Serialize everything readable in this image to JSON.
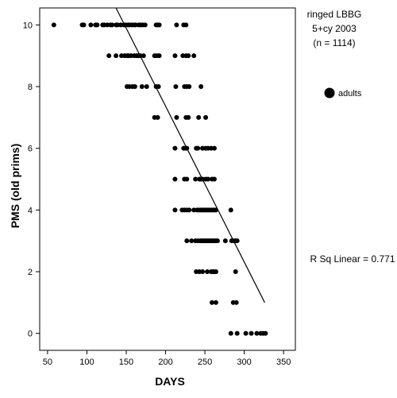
{
  "chart_data": {
    "type": "scatter",
    "title_lines": [
      "ringed LBBG",
      "5+cy 2003",
      "(n = 1114)"
    ],
    "xlabel": "DAYS",
    "ylabel": "PMS (old prims)",
    "xlim": [
      40,
      365
    ],
    "ylim": [
      -0.55,
      10.55
    ],
    "x_ticks": [
      50,
      100,
      150,
      200,
      250,
      300,
      350
    ],
    "y_ticks": [
      0,
      2,
      4,
      6,
      8,
      10
    ],
    "grid": false,
    "legend": {
      "position": "right",
      "entries": [
        {
          "label": "adults",
          "marker": "filled-circle"
        }
      ]
    },
    "annotation": "R Sq Linear = 0.771",
    "fit_line": {
      "type": "linear",
      "points": [
        [
          137,
          10.55
        ],
        [
          326,
          1.0
        ]
      ]
    },
    "series": [
      {
        "name": "adults",
        "color": "#000000",
        "points": [
          [
            58,
            10
          ],
          [
            94,
            10
          ],
          [
            96,
            10
          ],
          [
            105,
            10
          ],
          [
            111,
            10
          ],
          [
            113,
            10
          ],
          [
            120,
            10
          ],
          [
            122,
            10
          ],
          [
            126,
            10
          ],
          [
            130,
            10
          ],
          [
            132,
            10
          ],
          [
            137,
            10
          ],
          [
            139,
            10
          ],
          [
            143,
            10
          ],
          [
            147,
            10
          ],
          [
            149,
            10
          ],
          [
            152,
            10
          ],
          [
            154,
            10
          ],
          [
            157,
            10
          ],
          [
            160,
            10
          ],
          [
            162,
            10
          ],
          [
            166,
            10
          ],
          [
            168,
            10
          ],
          [
            171,
            10
          ],
          [
            174,
            10
          ],
          [
            188,
            10
          ],
          [
            190,
            10
          ],
          [
            192,
            10
          ],
          [
            214,
            10
          ],
          [
            223,
            10
          ],
          [
            226,
            10
          ],
          [
            128,
            9
          ],
          [
            137,
            9
          ],
          [
            144,
            9
          ],
          [
            148,
            9
          ],
          [
            151,
            9
          ],
          [
            153,
            9
          ],
          [
            156,
            9
          ],
          [
            160,
            9
          ],
          [
            163,
            9
          ],
          [
            165,
            9
          ],
          [
            168,
            9
          ],
          [
            172,
            9
          ],
          [
            186,
            9
          ],
          [
            189,
            9
          ],
          [
            192,
            9
          ],
          [
            212,
            9
          ],
          [
            222,
            9
          ],
          [
            226,
            9
          ],
          [
            229,
            9
          ],
          [
            236,
            9
          ],
          [
            151,
            8
          ],
          [
            154,
            8
          ],
          [
            158,
            8
          ],
          [
            161,
            8
          ],
          [
            170,
            8
          ],
          [
            176,
            8
          ],
          [
            188,
            8
          ],
          [
            191,
            8
          ],
          [
            213,
            8
          ],
          [
            224,
            8
          ],
          [
            227,
            8
          ],
          [
            230,
            8
          ],
          [
            245,
            8
          ],
          [
            186,
            7
          ],
          [
            190,
            7
          ],
          [
            214,
            7
          ],
          [
            226,
            7
          ],
          [
            229,
            7
          ],
          [
            242,
            7
          ],
          [
            251,
            7
          ],
          [
            212,
            6
          ],
          [
            223,
            6
          ],
          [
            225,
            6
          ],
          [
            227,
            6
          ],
          [
            239,
            6
          ],
          [
            241,
            6
          ],
          [
            247,
            6
          ],
          [
            251,
            6
          ],
          [
            254,
            6
          ],
          [
            258,
            6
          ],
          [
            262,
            6
          ],
          [
            212,
            5
          ],
          [
            224,
            5
          ],
          [
            227,
            5
          ],
          [
            238,
            5
          ],
          [
            243,
            5
          ],
          [
            245,
            5
          ],
          [
            247,
            5
          ],
          [
            251,
            5
          ],
          [
            254,
            5
          ],
          [
            259,
            5
          ],
          [
            262,
            5
          ],
          [
            212,
            4
          ],
          [
            221,
            4
          ],
          [
            224,
            4
          ],
          [
            227,
            4
          ],
          [
            230,
            4
          ],
          [
            236,
            4
          ],
          [
            240,
            4
          ],
          [
            242,
            4
          ],
          [
            244,
            4
          ],
          [
            246,
            4
          ],
          [
            248,
            4
          ],
          [
            250,
            4
          ],
          [
            252,
            4
          ],
          [
            254,
            4
          ],
          [
            256,
            4
          ],
          [
            258,
            4
          ],
          [
            260,
            4
          ],
          [
            262,
            4
          ],
          [
            264,
            4
          ],
          [
            283,
            4
          ],
          [
            227,
            3
          ],
          [
            233,
            3
          ],
          [
            238,
            3
          ],
          [
            241,
            3
          ],
          [
            244,
            3
          ],
          [
            246,
            3
          ],
          [
            248,
            3
          ],
          [
            250,
            3
          ],
          [
            252,
            3
          ],
          [
            254,
            3
          ],
          [
            256,
            3
          ],
          [
            258,
            3
          ],
          [
            260,
            3
          ],
          [
            262,
            3
          ],
          [
            264,
            3
          ],
          [
            266,
            3
          ],
          [
            276,
            3
          ],
          [
            284,
            3
          ],
          [
            287,
            3
          ],
          [
            289,
            3
          ],
          [
            291,
            3
          ],
          [
            239,
            2
          ],
          [
            243,
            2
          ],
          [
            247,
            2
          ],
          [
            253,
            2
          ],
          [
            258,
            2
          ],
          [
            260,
            2
          ],
          [
            262,
            2
          ],
          [
            264,
            2
          ],
          [
            289,
            2
          ],
          [
            259,
            1
          ],
          [
            264,
            1
          ],
          [
            286,
            1
          ],
          [
            290,
            1
          ],
          [
            283,
            0
          ],
          [
            291,
            0
          ],
          [
            302,
            0
          ],
          [
            309,
            0
          ],
          [
            316,
            0
          ],
          [
            321,
            0
          ],
          [
            324,
            0
          ],
          [
            327,
            0
          ]
        ]
      }
    ]
  }
}
